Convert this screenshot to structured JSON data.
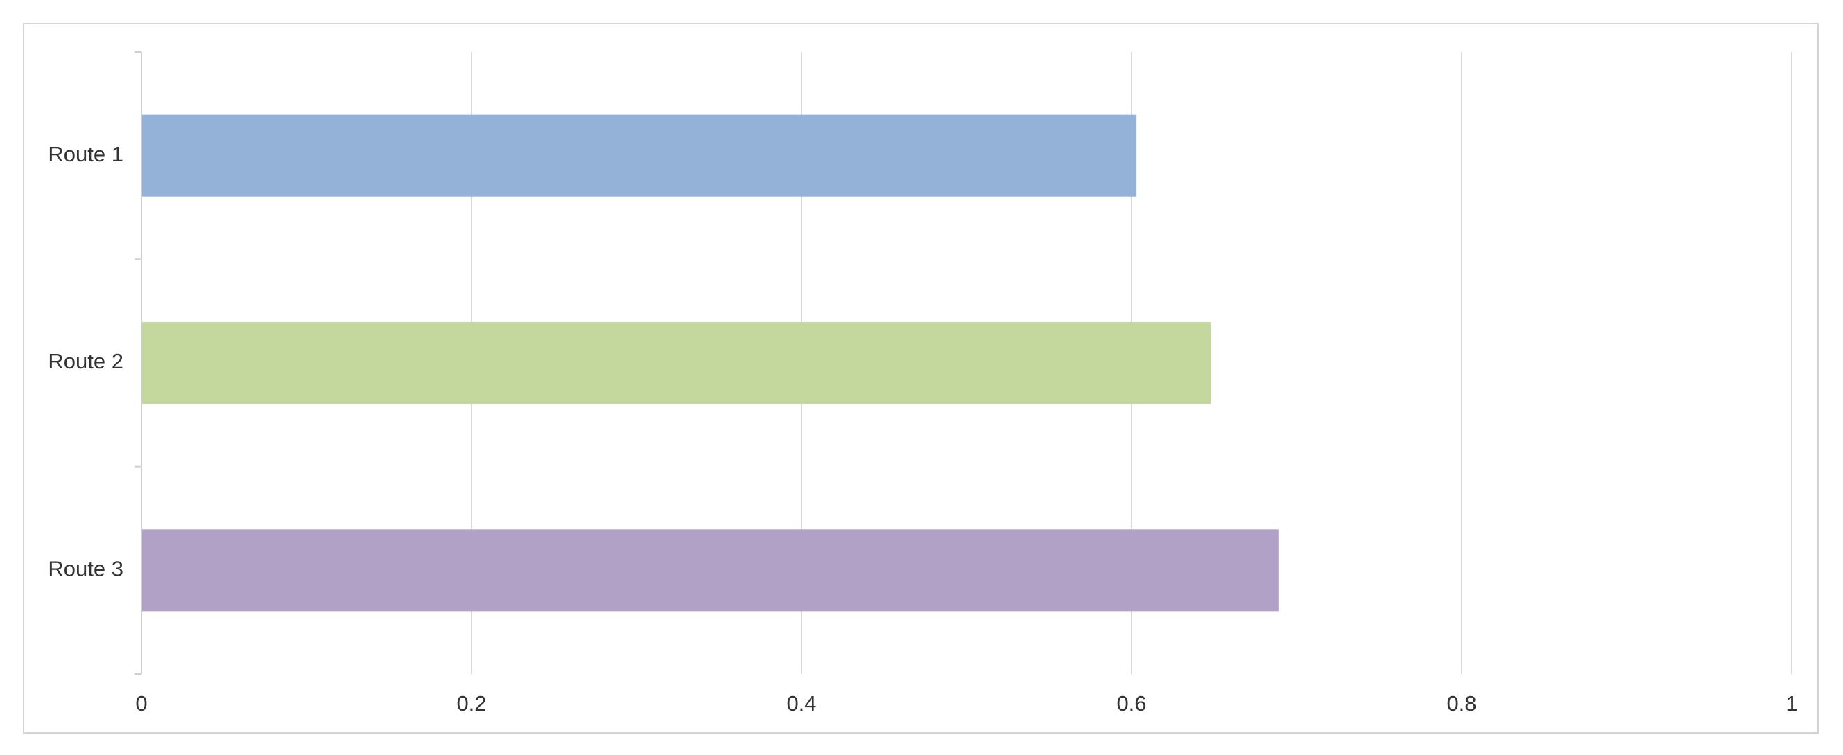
{
  "chart_data": {
    "type": "bar",
    "orientation": "horizontal",
    "categories": [
      "Route 1",
      "Route 2",
      "Route 3"
    ],
    "values": [
      0.603,
      0.648,
      0.689
    ],
    "colors": [
      "#94b2d7",
      "#c4d79c",
      "#b1a1c6"
    ],
    "xlim": [
      0,
      1
    ],
    "x_ticks": [
      0,
      0.2,
      0.4,
      0.6,
      0.8,
      1
    ],
    "x_tick_labels": [
      "0",
      "0.2",
      "0.4",
      "0.6",
      "0.8",
      "1"
    ],
    "grid": "vertical",
    "legend": "none"
  }
}
